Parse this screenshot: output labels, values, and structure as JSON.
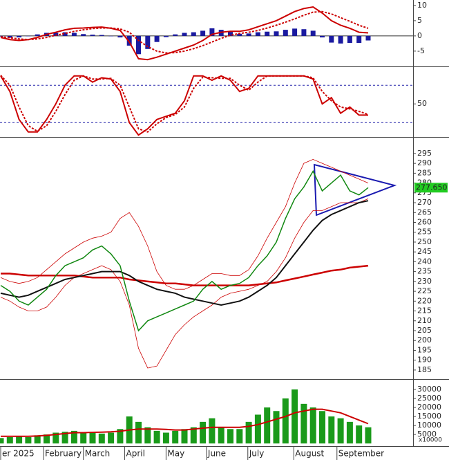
{
  "chart_data": [
    {
      "type": "macd",
      "ylim": [
        -9.8,
        11.8
      ],
      "yticks": [
        -5,
        0,
        5,
        10
      ],
      "series": [
        {
          "kind": "bar",
          "color": "#1a1aa0",
          "values": [
            -0.2,
            -0.6,
            -0.5,
            0,
            0.5,
            1,
            1,
            1.2,
            1,
            0.6,
            0.4,
            0.3,
            -0.1,
            -0.5,
            -3.2,
            -6,
            -4.3,
            -2,
            -0.4,
            0.5,
            1,
            1.2,
            1.7,
            2.5,
            2,
            1.3,
            0.7,
            0.8,
            1.2,
            1.4,
            1.5,
            2,
            2.4,
            2.2,
            1.7,
            -0.5,
            -2.2,
            -2.5,
            -2.3,
            -2.3,
            -1.5
          ]
        },
        {
          "kind": "line",
          "dash": true,
          "color": "#cc0000",
          "values": [
            -0.3,
            -0.6,
            -1,
            -1.2,
            -1,
            -0.5,
            0.2,
            0.8,
            1.5,
            2,
            2.4,
            2.6,
            2.6,
            2.3,
            1.2,
            -1.5,
            -3.5,
            -5,
            -5.6,
            -5.5,
            -5,
            -4.2,
            -3.2,
            -2,
            -0.8,
            0.2,
            0.8,
            1.2,
            1.8,
            2.6,
            3.5,
            4.5,
            5.6,
            6.8,
            7.8,
            8,
            7.2,
            6,
            4.8,
            3.5,
            2.5
          ]
        },
        {
          "kind": "line",
          "dash": false,
          "color": "#cc0000",
          "values": [
            -0.5,
            -1.2,
            -1.5,
            -1.2,
            -0.5,
            0.5,
            1.2,
            2,
            2.5,
            2.6,
            2.8,
            2.9,
            2.5,
            1.8,
            -2,
            -7.5,
            -7.8,
            -7,
            -6,
            -5,
            -4,
            -3,
            -1.5,
            0.5,
            1.2,
            1.5,
            1.5,
            2,
            3,
            4,
            5,
            6.5,
            8,
            9,
            9.5,
            7.5,
            5,
            3.5,
            2.5,
            1.2,
            1.0
          ]
        }
      ]
    },
    {
      "type": "stochastic",
      "ylim": [
        -2,
        108
      ],
      "yticks": [
        50
      ],
      "levels": [
        20,
        80
      ],
      "level_color": "#2222aa",
      "series": [
        {
          "kind": "line",
          "dash": true,
          "color": "#cc0000",
          "values": [
            96,
            80,
            45,
            15,
            6,
            15,
            38,
            65,
            88,
            95,
            90,
            90,
            91,
            80,
            45,
            10,
            5,
            18,
            28,
            33,
            45,
            75,
            93,
            92,
            91,
            91,
            80,
            72,
            85,
            95,
            95,
            95,
            95,
            95,
            92,
            70,
            55,
            45,
            42,
            38,
            33
          ]
        },
        {
          "kind": "line",
          "dash": false,
          "color": "#cc0000",
          "values": [
            95,
            70,
            25,
            5,
            5,
            25,
            50,
            80,
            95,
            95,
            85,
            92,
            90,
            70,
            20,
            0,
            10,
            25,
            30,
            35,
            55,
            95,
            95,
            88,
            95,
            88,
            70,
            75,
            95,
            95,
            95,
            95,
            95,
            95,
            90,
            50,
            60,
            35,
            45,
            32,
            32
          ]
        }
      ]
    },
    {
      "type": "price",
      "ylim": [
        180.4,
        302.7
      ],
      "yticks": [
        185,
        190,
        195,
        200,
        205,
        210,
        215,
        220,
        225,
        230,
        235,
        240,
        245,
        250,
        255,
        260,
        265,
        270,
        275,
        280,
        285,
        290,
        295
      ],
      "last_value": {
        "value": 277.65,
        "label": "277.650"
      },
      "last_color": "#22cc22",
      "series": [
        {
          "kind": "line",
          "width": 0.8,
          "color": "#cc0000",
          "values": [
            232,
            230,
            229,
            230,
            232,
            236,
            240,
            244,
            247,
            250,
            252,
            253,
            255,
            262,
            265,
            258,
            248,
            235,
            228,
            226,
            226,
            228,
            231,
            234,
            234,
            233,
            233,
            236,
            243,
            252,
            260,
            268,
            280,
            290,
            292,
            290,
            288,
            286,
            284,
            282,
            280
          ]
        },
        {
          "kind": "line",
          "width": 0.8,
          "color": "#cc0000",
          "values": [
            222,
            220,
            217,
            215,
            215,
            217,
            222,
            228,
            232,
            234,
            236,
            238,
            236,
            230,
            218,
            196,
            186,
            187,
            195,
            203,
            208,
            212,
            215,
            218,
            222,
            224,
            225,
            226,
            228,
            230,
            235,
            242,
            252,
            260,
            266,
            266,
            268,
            270,
            270,
            270,
            272
          ]
        },
        {
          "kind": "line",
          "width": 2.5,
          "color": "#cc0000",
          "values": [
            234,
            234,
            233.5,
            233,
            233,
            233,
            233,
            233,
            233,
            232.5,
            232,
            232,
            232,
            232,
            231,
            230.5,
            230,
            229.5,
            229,
            229,
            228.5,
            228,
            228,
            228,
            228,
            228,
            228,
            228,
            228.5,
            229,
            229.5,
            230.5,
            231.5,
            232.5,
            233.5,
            234.5,
            235.5,
            236,
            237,
            237.5,
            238
          ]
        },
        {
          "kind": "line",
          "width": 2,
          "color": "#111111",
          "values": [
            224,
            223,
            222,
            223,
            225,
            227,
            229,
            231,
            232,
            233,
            234,
            235,
            235,
            235,
            233,
            230,
            228,
            226,
            225,
            224,
            222,
            221,
            220,
            219,
            218,
            219,
            220,
            222,
            225,
            228,
            232,
            238,
            244,
            250,
            256,
            261,
            264,
            266,
            268,
            270,
            271
          ]
        },
        {
          "kind": "line",
          "width": 1.5,
          "color": "#118811",
          "values": [
            228,
            225,
            220,
            218,
            222,
            226,
            233,
            238,
            240,
            242,
            246,
            248,
            244,
            238,
            220,
            205,
            210,
            212,
            214,
            216,
            218,
            220,
            226,
            230,
            226,
            228,
            229,
            232,
            238,
            243,
            250,
            262,
            272,
            278,
            286,
            276,
            280,
            284,
            276,
            274,
            277.65
          ]
        }
      ]
    },
    {
      "type": "volume",
      "ylim": [
        -1500,
        35000
      ],
      "unit_label": "x10000",
      "yticks": [
        5000,
        10000,
        15000,
        20000,
        25000,
        30000
      ],
      "xticks": [
        {
          "value": 0,
          "label": "er 2025"
        },
        {
          "value": 4.66,
          "label": "February"
        },
        {
          "value": 9.0,
          "label": "March"
        },
        {
          "value": 13.5,
          "label": "April"
        },
        {
          "value": 18.0,
          "label": "May"
        },
        {
          "value": 22.4,
          "label": "June"
        },
        {
          "value": 26.9,
          "label": "July"
        },
        {
          "value": 31.9,
          "label": "August"
        },
        {
          "value": 36.6,
          "label": "September"
        }
      ],
      "series": [
        {
          "kind": "bar",
          "color": "#1a9a1a",
          "values": [
            3000,
            3500,
            4000,
            3500,
            4500,
            5000,
            6000,
            6500,
            7000,
            6000,
            6500,
            5500,
            6000,
            8000,
            15000,
            12000,
            9000,
            7000,
            6000,
            7000,
            8000,
            9000,
            12000,
            14000,
            9000,
            8000,
            8000,
            12000,
            16000,
            20000,
            18000,
            25000,
            30000,
            22000,
            20000,
            18000,
            15000,
            14000,
            12000,
            10000,
            9000
          ]
        },
        {
          "kind": "line",
          "dash": false,
          "color": "#cc0000",
          "values": [
            4000,
            4000,
            4000,
            4000,
            4200,
            4500,
            5000,
            5500,
            6000,
            6000,
            6200,
            6300,
            6500,
            6800,
            7500,
            8000,
            8000,
            8000,
            7800,
            7500,
            7500,
            8000,
            8500,
            9000,
            9000,
            9000,
            9000,
            9500,
            10500,
            12000,
            13500,
            15000,
            17000,
            18000,
            19000,
            19000,
            18000,
            17000,
            15000,
            13000,
            11000
          ]
        }
      ]
    }
  ]
}
